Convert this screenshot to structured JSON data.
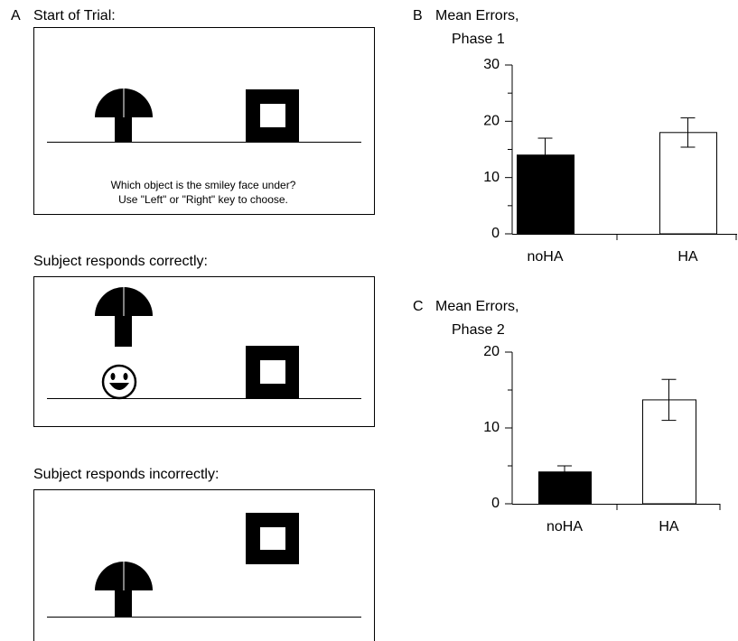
{
  "panels": {
    "start": {
      "label": "A",
      "title": "Start of Trial:",
      "prompt_line1": "Which object is the smiley face under?",
      "prompt_line2": "Use \"Left\" or \"Right\" key to choose."
    },
    "correct": {
      "title": "Subject responds correctly:"
    },
    "incorrect": {
      "title": "Subject responds incorrectly:"
    }
  },
  "chart_data": [
    {
      "panel_label": "B",
      "type": "bar",
      "title": "Mean Errors,",
      "subtitle": "Phase 1",
      "categories": [
        "noHA",
        "HA"
      ],
      "values": [
        14,
        18
      ],
      "errors": [
        3,
        2.6
      ],
      "colors": [
        "#000000",
        "#ffffff"
      ],
      "ylim": [
        0,
        30
      ],
      "yticks": [
        0,
        10,
        20,
        30
      ],
      "minor_yticks": [
        5,
        15,
        25
      ]
    },
    {
      "panel_label": "C",
      "type": "bar",
      "title": "Mean Errors,",
      "subtitle": "Phase 2",
      "categories": [
        "noHA",
        "HA"
      ],
      "values": [
        4.2,
        13.7
      ],
      "errors": [
        0.8,
        2.7
      ],
      "colors": [
        "#000000",
        "#ffffff"
      ],
      "ylim": [
        0,
        20
      ],
      "yticks": [
        0,
        10,
        20
      ],
      "minor_yticks": [
        5,
        15
      ]
    }
  ]
}
